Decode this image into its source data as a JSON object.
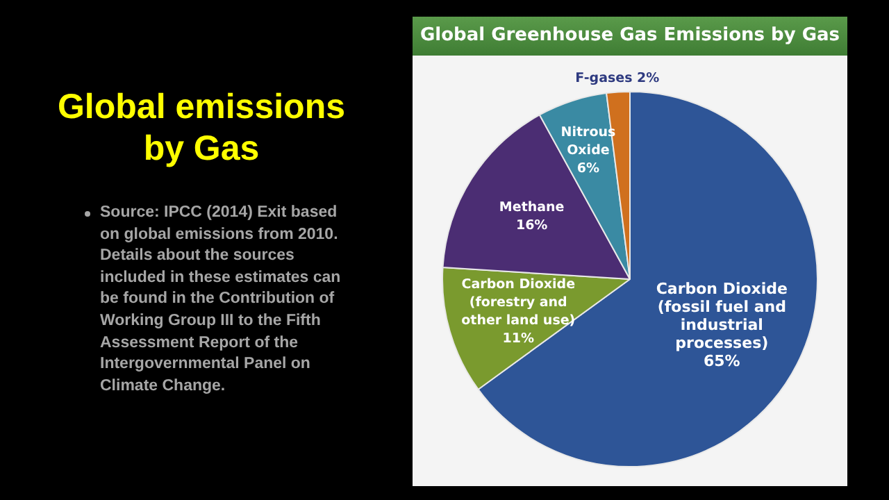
{
  "chart_data": {
    "type": "pie",
    "title": "Global emissions by Gas",
    "subtitle": "Global Greenhouse Gas Emissions by Gas",
    "categories": [
      "Carbon Dioxide (fossil fuel and industrial processes)",
      "Carbon Dioxide (forestry and other land use)",
      "Methane",
      "Nitrous Oxide",
      "F-gases"
    ],
    "values": [
      65,
      11,
      16,
      6,
      2
    ],
    "colors": [
      "#2e5597",
      "#7a9a2e",
      "#4b2d73",
      "#3a8aa3",
      "#d0701e"
    ],
    "value_labels": [
      "65%",
      "11%",
      "16%",
      "6%",
      "2%"
    ],
    "legend": false,
    "annotations": [
      "Source: IPCC (2014) Exit based on global emissions from 2010. Details about the sources included in these estimates can be found in the Contribution of Working Group III to the Fifth Assessment Report of the Intergovernmental Panel on Climate Change."
    ]
  }
}
